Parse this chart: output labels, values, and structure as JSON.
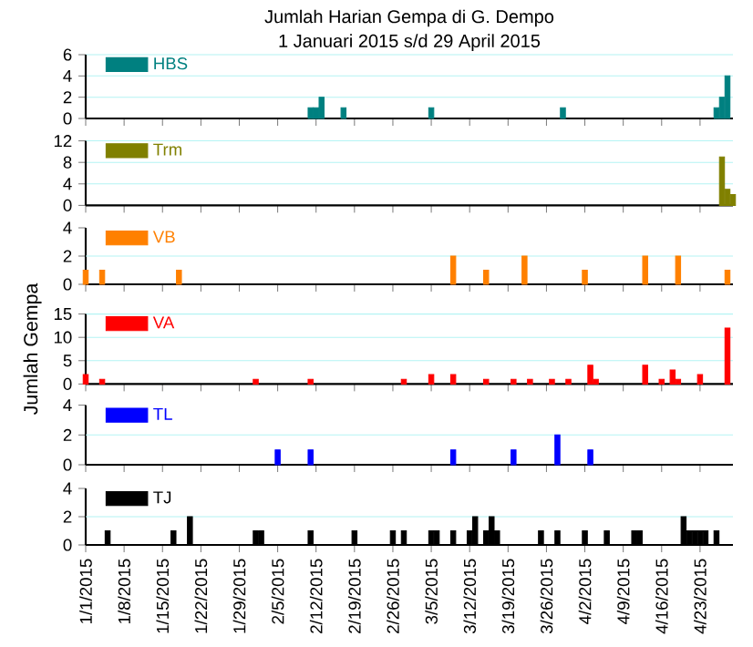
{
  "chart_data": [
    {
      "type": "bar",
      "title": "Jumlah Harian Gempa di G. Dempo",
      "subtitle": "1 Januari 2015 s/d 29 April 2015",
      "xlim": [
        "2015-01-01",
        "2015-04-29"
      ],
      "xticks": [
        "2015-01-01",
        "2015-01-08",
        "2015-01-15",
        "2015-01-22",
        "2015-01-29",
        "2015-02-05",
        "2015-02-12",
        "2015-02-19",
        "2015-02-26",
        "2015-03-05",
        "2015-03-12",
        "2015-03-19",
        "2015-03-26",
        "2015-04-02",
        "2015-04-09",
        "2015-04-16",
        "2015-04-23"
      ],
      "ylim": [
        0,
        6
      ],
      "yticks": [
        0,
        2,
        4,
        6
      ],
      "grid": "y",
      "legend": "top left",
      "tick_labels": "y",
      "series": [
        {
          "name": "HBS",
          "color": "#008080",
          "x": [
            "2015-02-11",
            "2015-02-12",
            "2015-02-13",
            "2015-02-17",
            "2015-03-05",
            "2015-03-29",
            "2015-04-26",
            "2015-04-27",
            "2015-04-28"
          ],
          "values": [
            1,
            1,
            2,
            1,
            1,
            1,
            1,
            2,
            4
          ]
        }
      ]
    },
    {
      "type": "bar",
      "xlim": [
        "2015-01-01",
        "2015-04-29"
      ],
      "xticks": [
        "2015-01-01",
        "2015-01-08",
        "2015-01-15",
        "2015-01-22",
        "2015-01-29",
        "2015-02-05",
        "2015-02-12",
        "2015-02-19",
        "2015-02-26",
        "2015-03-05",
        "2015-03-12",
        "2015-03-19",
        "2015-03-26",
        "2015-04-02",
        "2015-04-09",
        "2015-04-16",
        "2015-04-23"
      ],
      "ylim": [
        0,
        12
      ],
      "yticks": [
        0,
        4,
        8,
        12
      ],
      "grid": "y",
      "legend": "top left",
      "tick_labels": "y",
      "series": [
        {
          "name": "Trm",
          "color": "#808000",
          "x": [
            "2015-04-27",
            "2015-04-28",
            "2015-04-29"
          ],
          "values": [
            9,
            3,
            2
          ]
        }
      ]
    },
    {
      "type": "bar",
      "xlim": [
        "2015-01-01",
        "2015-04-29"
      ],
      "xticks": [
        "2015-01-01",
        "2015-01-08",
        "2015-01-15",
        "2015-01-22",
        "2015-01-29",
        "2015-02-05",
        "2015-02-12",
        "2015-02-19",
        "2015-02-26",
        "2015-03-05",
        "2015-03-12",
        "2015-03-19",
        "2015-03-26",
        "2015-04-02",
        "2015-04-09",
        "2015-04-16",
        "2015-04-23"
      ],
      "ylim": [
        0,
        4
      ],
      "yticks": [
        0,
        2,
        4
      ],
      "ref_lines": [
        {
          "axis": "y",
          "value": 2,
          "color": "#b4f4f4"
        }
      ],
      "legend": "top left",
      "tick_labels": "y",
      "series": [
        {
          "name": "VB",
          "color": "#ff8000",
          "x": [
            "2015-01-01",
            "2015-01-04",
            "2015-01-18",
            "2015-03-09",
            "2015-03-15",
            "2015-03-22",
            "2015-04-02",
            "2015-04-13",
            "2015-04-19",
            "2015-04-28"
          ],
          "values": [
            1,
            1,
            1,
            2,
            1,
            2,
            1,
            2,
            2,
            1
          ]
        }
      ]
    },
    {
      "type": "bar",
      "ylabel": "Jumlah Gempa",
      "xlim": [
        "2015-01-01",
        "2015-04-29"
      ],
      "xticks": [
        "2015-01-01",
        "2015-01-08",
        "2015-01-15",
        "2015-01-22",
        "2015-01-29",
        "2015-02-05",
        "2015-02-12",
        "2015-02-19",
        "2015-02-26",
        "2015-03-05",
        "2015-03-12",
        "2015-03-19",
        "2015-03-26",
        "2015-04-02",
        "2015-04-09",
        "2015-04-16",
        "2015-04-23"
      ],
      "ylim": [
        0,
        15
      ],
      "yticks": [
        0,
        5,
        10,
        15
      ],
      "grid": "y",
      "legend": "top left",
      "tick_labels": "y",
      "series": [
        {
          "name": "VA",
          "color": "#ff0000",
          "x": [
            "2015-01-01",
            "2015-01-04",
            "2015-02-01",
            "2015-02-11",
            "2015-02-28",
            "2015-03-05",
            "2015-03-09",
            "2015-03-15",
            "2015-03-20",
            "2015-03-23",
            "2015-03-27",
            "2015-03-30",
            "2015-04-03",
            "2015-04-04",
            "2015-04-13",
            "2015-04-16",
            "2015-04-18",
            "2015-04-19",
            "2015-04-23",
            "2015-04-28"
          ],
          "values": [
            2,
            1,
            1,
            1,
            1,
            2,
            2,
            1,
            1,
            1,
            1,
            1,
            4,
            1,
            4,
            1,
            3,
            1,
            2,
            12
          ]
        }
      ]
    },
    {
      "type": "bar",
      "xlim": [
        "2015-01-01",
        "2015-04-29"
      ],
      "xticks": [
        "2015-01-01",
        "2015-01-08",
        "2015-01-15",
        "2015-01-22",
        "2015-01-29",
        "2015-02-05",
        "2015-02-12",
        "2015-02-19",
        "2015-02-26",
        "2015-03-05",
        "2015-03-12",
        "2015-03-19",
        "2015-03-26",
        "2015-04-02",
        "2015-04-09",
        "2015-04-16",
        "2015-04-23"
      ],
      "ylim": [
        0,
        4
      ],
      "yticks": [
        0,
        2,
        4
      ],
      "ref_lines": [
        {
          "axis": "y",
          "value": 2,
          "color": "#b4f4f4"
        }
      ],
      "legend": "top left",
      "tick_labels": "y",
      "series": [
        {
          "name": "TL",
          "color": "#0000ff",
          "x": [
            "2015-02-05",
            "2015-02-11",
            "2015-03-09",
            "2015-03-20",
            "2015-03-28",
            "2015-04-03"
          ],
          "values": [
            1,
            1,
            1,
            1,
            2,
            1
          ]
        }
      ]
    },
    {
      "type": "bar",
      "xlim": [
        "2015-01-01",
        "2015-04-29"
      ],
      "xticks": [
        {
          "value": "2015-01-01",
          "label": "1/1/2015"
        },
        {
          "value": "2015-01-08",
          "label": "1/8/2015"
        },
        {
          "value": "2015-01-15",
          "label": "1/15/2015"
        },
        {
          "value": "2015-01-22",
          "label": "1/22/2015"
        },
        {
          "value": "2015-01-29",
          "label": "1/29/2015"
        },
        {
          "value": "2015-02-05",
          "label": "2/5/2015"
        },
        {
          "value": "2015-02-12",
          "label": "2/12/2015"
        },
        {
          "value": "2015-02-19",
          "label": "2/19/2015"
        },
        {
          "value": "2015-02-26",
          "label": "2/26/2015"
        },
        {
          "value": "2015-03-05",
          "label": "3/5/2015"
        },
        {
          "value": "2015-03-12",
          "label": "3/12/2015"
        },
        {
          "value": "2015-03-19",
          "label": "3/19/2015"
        },
        {
          "value": "2015-03-26",
          "label": "3/26/2015"
        },
        {
          "value": "2015-04-02",
          "label": "4/2/2015"
        },
        {
          "value": "2015-04-09",
          "label": "4/9/2015"
        },
        {
          "value": "2015-04-16",
          "label": "4/16/2015"
        },
        {
          "value": "2015-04-23",
          "label": "4/23/2015"
        }
      ],
      "ylim": [
        0,
        4
      ],
      "yticks": [
        0,
        2,
        4
      ],
      "ref_lines": [
        {
          "axis": "y",
          "value": 2,
          "color": "#b4f4f4"
        }
      ],
      "legend": "top left",
      "series": [
        {
          "name": "TJ",
          "color": "#000000",
          "x": [
            "2015-01-05",
            "2015-01-17",
            "2015-01-20",
            "2015-02-01",
            "2015-02-02",
            "2015-02-11",
            "2015-02-19",
            "2015-02-26",
            "2015-02-28",
            "2015-03-05",
            "2015-03-06",
            "2015-03-09",
            "2015-03-12",
            "2015-03-13",
            "2015-03-15",
            "2015-03-16",
            "2015-03-17",
            "2015-03-25",
            "2015-03-28",
            "2015-04-02",
            "2015-04-06",
            "2015-04-11",
            "2015-04-12",
            "2015-04-20",
            "2015-04-21",
            "2015-04-22",
            "2015-04-23",
            "2015-04-24",
            "2015-04-26"
          ],
          "values": [
            1,
            1,
            2,
            1,
            1,
            1,
            1,
            1,
            1,
            1,
            1,
            1,
            1,
            2,
            1,
            2,
            1,
            1,
            1,
            1,
            1,
            1,
            1,
            2,
            1,
            1,
            1,
            1,
            1
          ]
        }
      ]
    }
  ]
}
